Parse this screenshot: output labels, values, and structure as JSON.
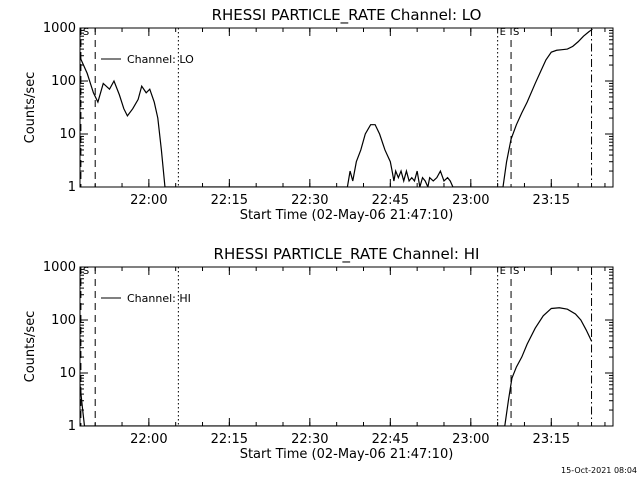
{
  "footer": {
    "timestamp": "15-Oct-2021 08:04"
  },
  "chart_data": [
    {
      "type": "line",
      "title": "RHESSI PARTICLE_RATE Channel: LO",
      "xlabel": "Start Time (02-May-06 21:47:10)",
      "ylabel": "Counts/sec",
      "yscale": "log",
      "ylim": [
        1,
        1000
      ],
      "xlim": [
        "21:47:10",
        "23:26:30"
      ],
      "xticks": [
        "22:00",
        "22:15",
        "22:30",
        "22:45",
        "23:00",
        "23:15"
      ],
      "yticks": [
        "1",
        "10",
        "100",
        "1000"
      ],
      "legend": {
        "position": "top-left",
        "entries": [
          "Channel: LO"
        ]
      },
      "markers": [
        {
          "label": "S",
          "time": "21:47:20",
          "style": "dashed"
        },
        {
          "label": "",
          "time": "21:50:00",
          "style": "dashed"
        },
        {
          "label": "",
          "time": "22:05:30",
          "style": "dotted"
        },
        {
          "label": "E",
          "time": "23:05:00",
          "style": "dotted"
        },
        {
          "label": "S",
          "time": "23:07:30",
          "style": "dashed"
        },
        {
          "label": "",
          "time": "23:22:30",
          "style": "dash-dot"
        }
      ],
      "series": [
        {
          "name": "Channel: LO",
          "points": [
            [
              "21:47:10",
              280
            ],
            [
              "21:48:30",
              140
            ],
            [
              "21:49:40",
              60
            ],
            [
              "21:50:30",
              40
            ],
            [
              "21:51:30",
              90
            ],
            [
              "21:52:40",
              70
            ],
            [
              "21:53:30",
              100
            ],
            [
              "21:54:30",
              55
            ],
            [
              "21:55:20",
              30
            ],
            [
              "21:56:00",
              22
            ],
            [
              "21:57:00",
              30
            ],
            [
              "21:58:00",
              45
            ],
            [
              "21:58:40",
              80
            ],
            [
              "21:59:30",
              60
            ],
            [
              "22:00:10",
              70
            ],
            [
              "22:01:00",
              40
            ],
            [
              "22:01:40",
              20
            ],
            [
              "22:02:20",
              5
            ],
            [
              "22:03:00",
              1
            ],
            [
              "22:37:00",
              1
            ],
            [
              "22:37:30",
              2
            ],
            [
              "22:38:00",
              1.3
            ],
            [
              "22:38:40",
              3
            ],
            [
              "22:39:30",
              5
            ],
            [
              "22:40:20",
              10
            ],
            [
              "22:41:20",
              15
            ],
            [
              "22:42:10",
              15
            ],
            [
              "22:43:00",
              10
            ],
            [
              "22:44:00",
              5
            ],
            [
              "22:45:00",
              3
            ],
            [
              "22:45:20",
              2
            ],
            [
              "22:45:40",
              1.3
            ],
            [
              "22:46:00",
              2
            ],
            [
              "22:46:30",
              1.5
            ],
            [
              "22:47:00",
              2
            ],
            [
              "22:47:30",
              1.3
            ],
            [
              "22:48:00",
              2
            ],
            [
              "22:48:30",
              1.3
            ],
            [
              "22:49:00",
              1.5
            ],
            [
              "22:49:30",
              1.3
            ],
            [
              "22:50:00",
              2
            ],
            [
              "22:50:30",
              1
            ],
            [
              "22:51:00",
              1.5
            ],
            [
              "22:51:30",
              1.3
            ],
            [
              "22:52:00",
              1
            ],
            [
              "22:52:20",
              1.5
            ],
            [
              "22:53:00",
              1.3
            ],
            [
              "22:53:40",
              1.5
            ],
            [
              "22:54:20",
              2
            ],
            [
              "22:55:00",
              1.3
            ],
            [
              "22:55:40",
              1.5
            ],
            [
              "22:56:10",
              1.3
            ],
            [
              "22:56:40",
              1
            ],
            [
              "23:06:00",
              1
            ],
            [
              "23:06:40",
              3
            ],
            [
              "23:07:30",
              8
            ],
            [
              "23:08:30",
              15
            ],
            [
              "23:09:30",
              25
            ],
            [
              "23:10:30",
              40
            ],
            [
              "23:12:00",
              90
            ],
            [
              "23:13:00",
              150
            ],
            [
              "23:14:00",
              250
            ],
            [
              "23:15:00",
              350
            ],
            [
              "23:16:00",
              380
            ],
            [
              "23:17:00",
              390
            ],
            [
              "23:18:00",
              400
            ],
            [
              "23:19:00",
              450
            ],
            [
              "23:20:00",
              550
            ],
            [
              "23:21:00",
              700
            ],
            [
              "23:22:00",
              850
            ],
            [
              "23:22:40",
              950
            ]
          ]
        }
      ]
    },
    {
      "type": "line",
      "title": "RHESSI PARTICLE_RATE Channel: HI",
      "xlabel": "Start Time (02-May-06 21:47:10)",
      "ylabel": "Counts/sec",
      "yscale": "log",
      "ylim": [
        1,
        1000
      ],
      "xlim": [
        "21:47:10",
        "23:26:30"
      ],
      "xticks": [
        "22:00",
        "22:15",
        "22:30",
        "22:45",
        "23:00",
        "23:15"
      ],
      "yticks": [
        "1",
        "10",
        "100",
        "1000"
      ],
      "legend": {
        "position": "top-left",
        "entries": [
          "Channel: HI"
        ]
      },
      "markers": [
        {
          "label": "S",
          "time": "21:47:20",
          "style": "dashed"
        },
        {
          "label": "",
          "time": "21:50:00",
          "style": "dashed"
        },
        {
          "label": "",
          "time": "22:05:30",
          "style": "dotted"
        },
        {
          "label": "E",
          "time": "23:05:00",
          "style": "dotted"
        },
        {
          "label": "S",
          "time": "23:07:30",
          "style": "dashed"
        },
        {
          "label": "",
          "time": "23:22:30",
          "style": "dash-dot"
        }
      ],
      "series": [
        {
          "name": "Channel: HI",
          "points": [
            [
              "21:47:10",
              6
            ],
            [
              "21:47:40",
              2
            ],
            [
              "21:48:00",
              1
            ],
            [
              "23:06:20",
              1
            ],
            [
              "23:07:00",
              3
            ],
            [
              "23:07:40",
              8
            ],
            [
              "23:08:30",
              13
            ],
            [
              "23:09:30",
              20
            ],
            [
              "23:10:30",
              35
            ],
            [
              "23:12:00",
              70
            ],
            [
              "23:13:30",
              120
            ],
            [
              "23:15:00",
              165
            ],
            [
              "23:16:30",
              170
            ],
            [
              "23:18:00",
              160
            ],
            [
              "23:19:30",
              130
            ],
            [
              "23:20:30",
              100
            ],
            [
              "23:21:30",
              65
            ],
            [
              "23:22:30",
              40
            ]
          ]
        }
      ]
    }
  ]
}
